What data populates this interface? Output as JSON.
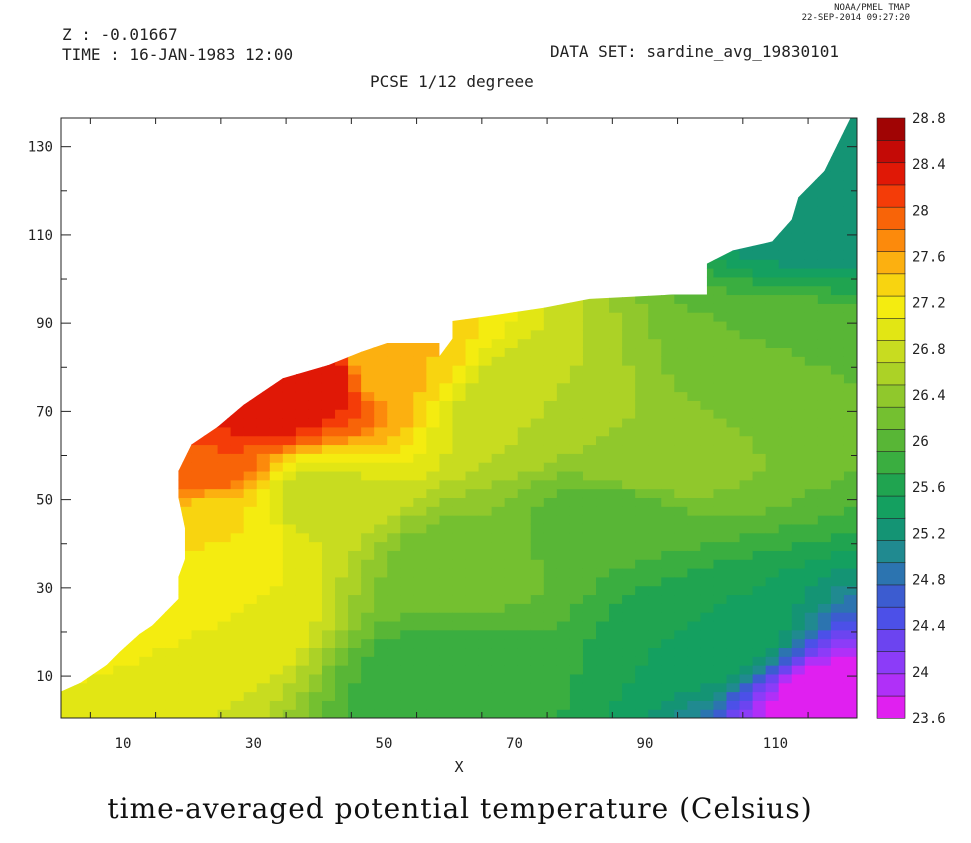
{
  "header": {
    "credit_line1": "NOAA/PMEL TMAP",
    "credit_line2": "22-SEP-2014 09:27:20",
    "z_label": "Z : -0.01667",
    "time_label": "TIME : 16-JAN-1983 12:00",
    "dataset_label": "DATA SET: sardine_avg_19830101",
    "subtitle": "PCSE 1/12 degreee"
  },
  "chart_data": {
    "type": "heatmap",
    "title": "time-averaged potential temperature (Celsius)",
    "xlabel": "X",
    "ylabel": "",
    "xlim": [
      0.5,
      122.5
    ],
    "ylim": [
      0.5,
      136.5
    ],
    "xticks": [
      10,
      30,
      50,
      70,
      90,
      110
    ],
    "yticks": [
      10,
      30,
      50,
      70,
      90,
      110,
      130
    ],
    "colorbar": {
      "levels": [
        23.6,
        23.8,
        24.0,
        24.2,
        24.4,
        24.6,
        24.8,
        25.0,
        25.2,
        25.4,
        25.6,
        25.8,
        26.0,
        26.2,
        26.4,
        26.6,
        26.8,
        27.0,
        27.2,
        27.4,
        27.6,
        27.8,
        28.0,
        28.2,
        28.4,
        28.6,
        28.8
      ],
      "tick_labels": [
        "28.8",
        "28.4",
        "28",
        "27.6",
        "27.2",
        "26.8",
        "26.4",
        "26",
        "25.6",
        "25.2",
        "24.8",
        "24.4",
        "24",
        "23.6"
      ],
      "colors": [
        "#e020f0",
        "#b030f8",
        "#8c3cf8",
        "#6c44f0",
        "#4c50e8",
        "#3c5cd0",
        "#2c74b0",
        "#208a90",
        "#149474",
        "#14a060",
        "#20a450",
        "#3aae40",
        "#58b636",
        "#74c030",
        "#90c82c",
        "#acd226",
        "#c8dc20",
        "#e2e614",
        "#f4ec10",
        "#f8d410",
        "#fcb010",
        "#fc8a0c",
        "#f86408",
        "#f43c08",
        "#e01806",
        "#c40a06",
        "#a00404"
      ]
    },
    "domain_boundary": {
      "west_coast": [
        [
          1,
          1
        ],
        [
          1,
          6
        ],
        [
          4,
          8
        ],
        [
          8,
          12
        ],
        [
          10,
          15
        ],
        [
          13,
          19
        ],
        [
          15,
          21
        ],
        [
          17,
          24
        ],
        [
          19,
          27
        ],
        [
          19,
          32
        ],
        [
          20,
          36
        ],
        [
          20,
          43
        ],
        [
          19,
          50
        ],
        [
          19,
          56
        ],
        [
          21,
          62
        ],
        [
          25,
          66
        ],
        [
          29,
          71
        ],
        [
          35,
          77
        ],
        [
          42,
          80
        ],
        [
          47,
          83
        ],
        [
          51,
          85
        ],
        [
          59,
          85
        ],
        [
          59,
          82
        ],
        [
          61,
          86
        ],
        [
          61,
          90
        ],
        [
          66,
          91
        ],
        [
          75,
          93
        ],
        [
          82,
          95
        ],
        [
          95,
          96
        ],
        [
          100,
          96
        ],
        [
          100,
          103
        ],
        [
          104,
          106
        ],
        [
          110,
          108
        ],
        [
          113,
          113
        ],
        [
          114,
          118
        ],
        [
          118,
          124
        ],
        [
          120,
          130
        ],
        [
          122,
          136
        ]
      ],
      "x_max": 122,
      "y_min": 1
    },
    "field_description_points": [
      {
        "x": 30,
        "y": 72,
        "value": 28.6
      },
      {
        "x": 40,
        "y": 77,
        "value": 28.6
      },
      {
        "x": 22,
        "y": 58,
        "value": 28.2
      },
      {
        "x": 25,
        "y": 45,
        "value": 27.4
      },
      {
        "x": 50,
        "y": 80,
        "value": 27.6
      },
      {
        "x": 25,
        "y": 25,
        "value": 27.2
      },
      {
        "x": 40,
        "y": 50,
        "value": 26.9
      },
      {
        "x": 70,
        "y": 70,
        "value": 26.8
      },
      {
        "x": 90,
        "y": 60,
        "value": 26.6
      },
      {
        "x": 60,
        "y": 35,
        "value": 26.3
      },
      {
        "x": 85,
        "y": 45,
        "value": 26.0
      },
      {
        "x": 60,
        "y": 10,
        "value": 25.8
      },
      {
        "x": 100,
        "y": 20,
        "value": 25.6
      },
      {
        "x": 115,
        "y": 118,
        "value": 25.2
      },
      {
        "x": 120,
        "y": 3,
        "value": 23.6
      },
      {
        "x": 110,
        "y": 80,
        "value": 26.2
      }
    ]
  }
}
